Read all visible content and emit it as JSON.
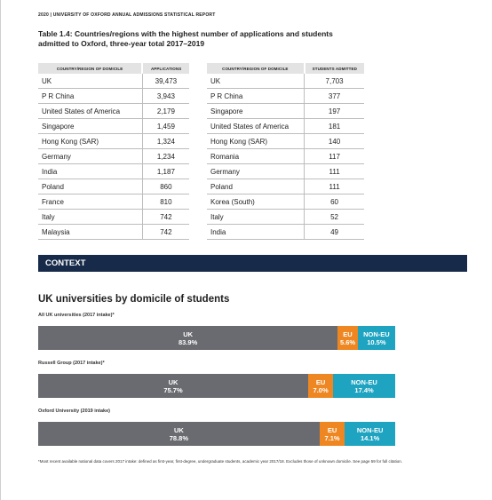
{
  "running_head": "2020 | UNIVERSITY OF OXFORD ANNUAL ADMISSIONS STATISTICAL REPORT",
  "table_title": "Table 1.4: Countries/regions with the highest number of applications and students admitted to Oxford, three-year total 2017–2019",
  "applications_table": {
    "headers": [
      "COUNTRY/REGION OF DOMICILE",
      "APPLICATIONS"
    ],
    "rows": [
      [
        "UK",
        "39,473"
      ],
      [
        "P R China",
        "3,943"
      ],
      [
        "United States of America",
        "2,179"
      ],
      [
        "Singapore",
        "1,459"
      ],
      [
        "Hong Kong (SAR)",
        "1,324"
      ],
      [
        "Germany",
        "1,234"
      ],
      [
        "India",
        "1,187"
      ],
      [
        "Poland",
        "860"
      ],
      [
        "France",
        "810"
      ],
      [
        "Italy",
        "742"
      ],
      [
        "Malaysia",
        "742"
      ]
    ]
  },
  "admitted_table": {
    "headers": [
      "COUNTRY/REGION OF DOMICILE",
      "STUDENTS ADMITTED"
    ],
    "rows": [
      [
        "UK",
        "7,703"
      ],
      [
        "P R China",
        "377"
      ],
      [
        "Singapore",
        "197"
      ],
      [
        "United States of America",
        "181"
      ],
      [
        "Hong Kong (SAR)",
        "140"
      ],
      [
        "Romania",
        "117"
      ],
      [
        "Germany",
        "111"
      ],
      [
        "Poland",
        "111"
      ],
      [
        "Korea (South)",
        "60"
      ],
      [
        "Italy",
        "52"
      ],
      [
        "India",
        "49"
      ]
    ]
  },
  "context_label": "CONTEXT",
  "section_title": "UK universities by domicile of students",
  "colors": {
    "uk": "#6a6b70",
    "eu": "#ee8722",
    "non_eu": "#1ea3c1",
    "context_bar": "#172a4a"
  },
  "bars": [
    {
      "label": "All UK universities (2017 intake)*",
      "segments": [
        {
          "name": "UK",
          "pct_label": "83.9%",
          "value": 83.9
        },
        {
          "name": "EU",
          "pct_label": "5.6%",
          "value": 5.6
        },
        {
          "name": "NON-EU",
          "pct_label": "10.5%",
          "value": 10.5
        }
      ]
    },
    {
      "label": "Russell Group (2017 intake)*",
      "segments": [
        {
          "name": "UK",
          "pct_label": "75.7%",
          "value": 75.7
        },
        {
          "name": "EU",
          "pct_label": "7.0%",
          "value": 7.0
        },
        {
          "name": "NON-EU",
          "pct_label": "17.4%",
          "value": 17.4
        }
      ]
    },
    {
      "label": "Oxford University (2019 intake)",
      "segments": [
        {
          "name": "UK",
          "pct_label": "78.8%",
          "value": 78.8
        },
        {
          "name": "EU",
          "pct_label": "7.1%",
          "value": 7.1
        },
        {
          "name": "NON-EU",
          "pct_label": "14.1%",
          "value": 14.1
        }
      ]
    }
  ],
  "footnote": "*Most recent available national data covers 2017 intake: defined as first-year, first-degree, undergraduate students, academic year 2017/18. Excludes those of unknown domicile. See page 59 for full citation."
}
